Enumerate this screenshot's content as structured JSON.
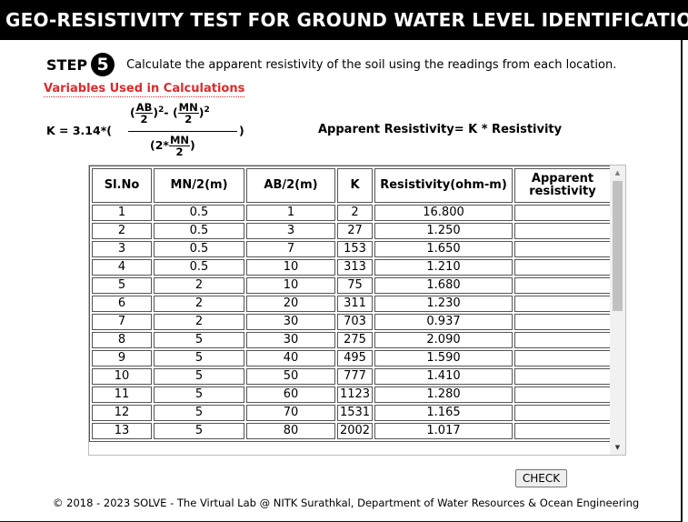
{
  "title": "GEO-RESISTIVITY TEST FOR GROUND WATER LEVEL IDENTIFICATION",
  "step": {
    "label": "STEP",
    "number": "5",
    "instruction": "Calculate the apparent resistivity of the soil using the readings from each location."
  },
  "variables_link": "Variables Used in Calculations",
  "formula": {
    "k_prefix": "K = 3.14*(",
    "ab": "AB",
    "mn": "MN",
    "two": "2",
    "sq": "2",
    "minus": "-",
    "paren_open": "(",
    "paren_close": ")",
    "den_prefix": "(2*",
    "rparen": ")"
  },
  "apparent_formula": "Apparent Resistivity= K * Resistivity",
  "table": {
    "headers": [
      "Sl.No",
      "MN/2(m)",
      "AB/2(m)",
      "K",
      "Resistivity(ohm-m)",
      "Apparent resistivity"
    ],
    "rows": [
      [
        "1",
        "0.5",
        "1",
        "2",
        "16.800"
      ],
      [
        "2",
        "0.5",
        "3",
        "27",
        "1.250"
      ],
      [
        "3",
        "0.5",
        "7",
        "153",
        "1.650"
      ],
      [
        "4",
        "0.5",
        "10",
        "313",
        "1.210"
      ],
      [
        "5",
        "2",
        "10",
        "75",
        "1.680"
      ],
      [
        "6",
        "2",
        "20",
        "311",
        "1.230"
      ],
      [
        "7",
        "2",
        "30",
        "703",
        "0.937"
      ],
      [
        "8",
        "5",
        "30",
        "275",
        "2.090"
      ],
      [
        "9",
        "5",
        "40",
        "495",
        "1.590"
      ],
      [
        "10",
        "5",
        "50",
        "777",
        "1.410"
      ],
      [
        "11",
        "5",
        "60",
        "1123",
        "1.280"
      ],
      [
        "12",
        "5",
        "70",
        "1531",
        "1.165"
      ],
      [
        "13",
        "5",
        "80",
        "2002",
        "1.017"
      ]
    ]
  },
  "check_button": "CHECK",
  "footer": "© 2018 - 2023 SOLVE - The Virtual Lab @ NITK Surathkal, Department of Water Resources & Ocean Engineering",
  "colors": {
    "title_bg": "#000000",
    "link": "#e02a2a"
  },
  "icons": {
    "scroll_up": "triangle-up",
    "scroll_down": "triangle-down"
  }
}
